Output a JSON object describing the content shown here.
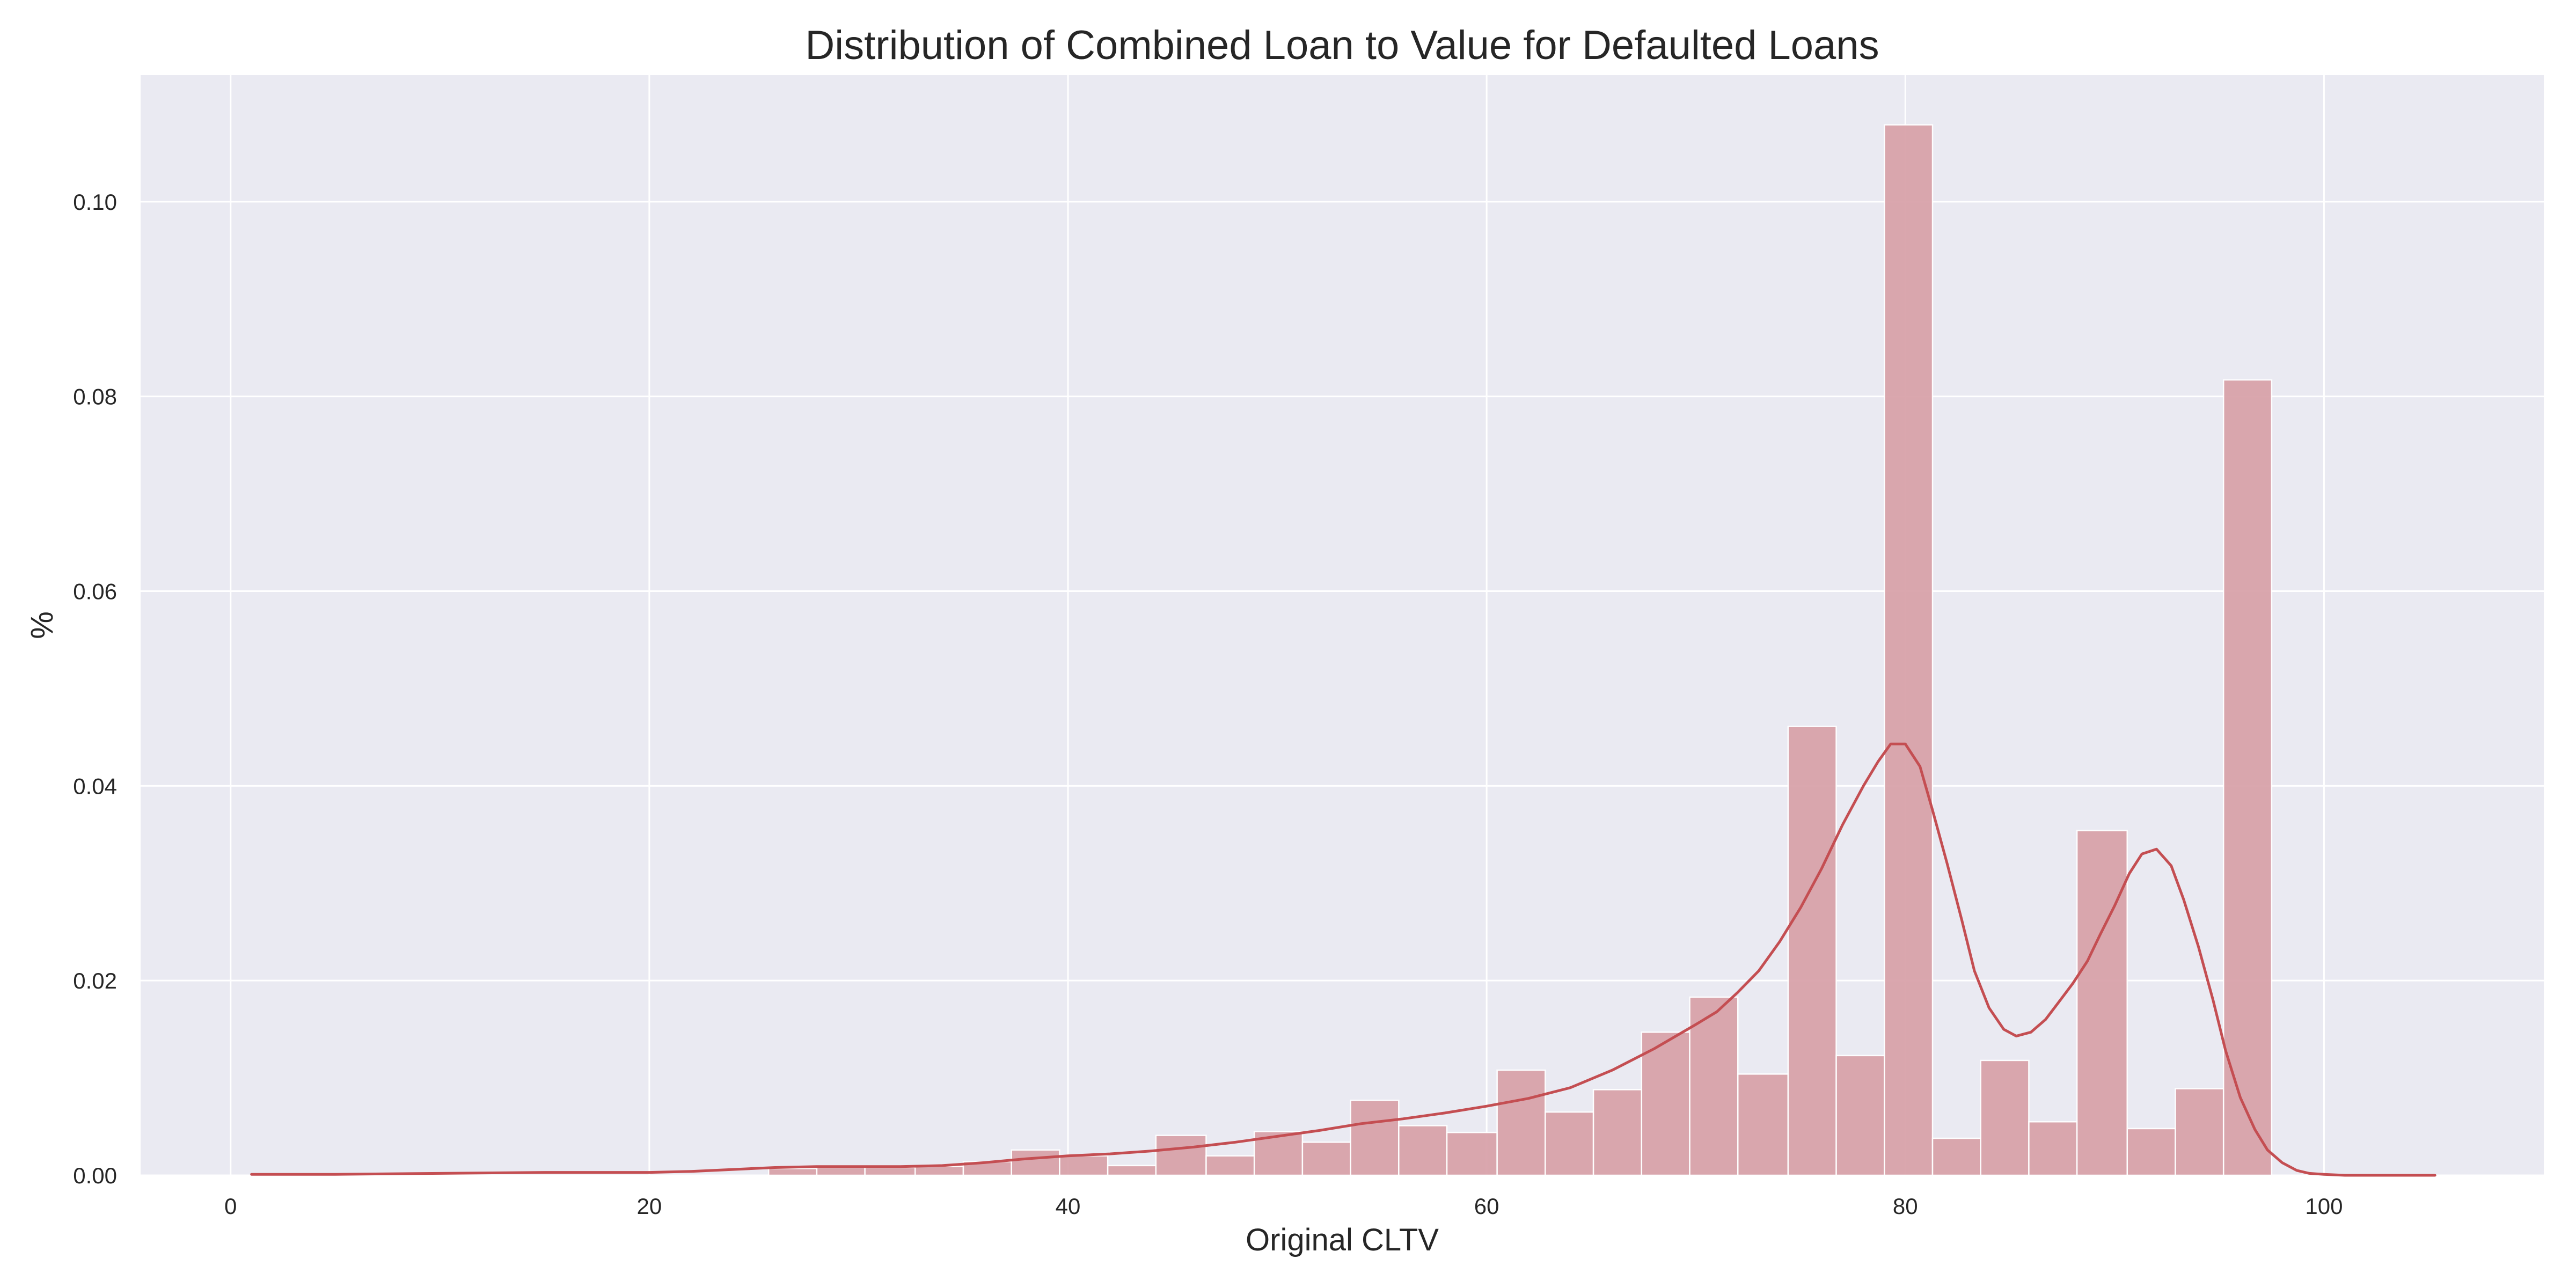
{
  "chart_data": {
    "type": "bar",
    "title": "Distribution of Combined Loan to Value for Defaulted Loans",
    "xlabel": "Original CLTV",
    "ylabel": "%",
    "xlim": [
      -4.3,
      110.5
    ],
    "ylim": [
      0,
      0.113
    ],
    "xticks": [
      0,
      20,
      40,
      60,
      80,
      100
    ],
    "yticks": [
      0.0,
      0.02,
      0.04,
      0.06,
      0.08,
      0.1
    ],
    "xtick_labels": [
      "0",
      "20",
      "40",
      "60",
      "80",
      "100"
    ],
    "ytick_labels": [
      "0.00",
      "0.02",
      "0.04",
      "0.06",
      "0.08",
      "0.10"
    ],
    "grid": true,
    "background_color": "#eaeaf2",
    "bar_color": "#d9a3aa",
    "line_color": "#c44e52",
    "histogram": {
      "bin_edges": [
        25.7,
        28.0,
        30.3,
        32.7,
        35.0,
        37.3,
        39.6,
        41.9,
        44.2,
        46.6,
        48.9,
        51.2,
        53.5,
        55.8,
        58.1,
        60.5,
        62.8,
        65.1,
        67.4,
        69.7,
        72.0,
        74.4,
        76.7,
        79.0,
        81.3,
        83.6,
        85.9,
        88.2,
        90.6,
        92.9,
        95.2,
        97.5
      ],
      "values": [
        0.0007,
        0.0008,
        0.0008,
        0.0009,
        0.0014,
        0.0026,
        0.002,
        0.001,
        0.0041,
        0.002,
        0.0045,
        0.0034,
        0.0077,
        0.0051,
        0.0044,
        0.0108,
        0.0065,
        0.0088,
        0.0147,
        0.0183,
        0.0104,
        0.0461,
        0.0123,
        0.1079,
        0.0038,
        0.0118,
        0.0055,
        0.0354,
        0.0048,
        0.0089,
        0.0817
      ]
    },
    "kde": {
      "x": [
        1,
        5,
        10,
        15,
        20,
        22,
        24,
        26,
        28,
        30,
        32,
        34,
        36,
        38,
        40,
        42,
        44,
        46,
        48,
        50,
        52,
        54,
        56,
        58,
        60,
        62,
        64,
        66,
        68,
        70,
        71,
        72,
        73,
        74,
        75,
        76,
        77,
        78,
        78.7,
        79.3,
        80,
        80.7,
        81.3,
        82,
        82.7,
        83.3,
        84,
        84.7,
        85.3,
        86,
        86.7,
        87.3,
        88,
        88.7,
        89.3,
        90,
        90.7,
        91.3,
        92,
        92.7,
        93.3,
        94,
        94.7,
        95.3,
        96,
        96.7,
        97.3,
        98,
        98.7,
        99.3,
        100,
        101,
        102,
        103,
        104,
        105.3
      ],
      "y": [
        0.0001,
        0.0001,
        0.0002,
        0.0003,
        0.0003,
        0.0004,
        0.0006,
        0.0008,
        0.0009,
        0.0009,
        0.0009,
        0.001,
        0.0013,
        0.0017,
        0.002,
        0.0022,
        0.0025,
        0.0029,
        0.0034,
        0.004,
        0.0046,
        0.0053,
        0.0058,
        0.0064,
        0.0071,
        0.0079,
        0.009,
        0.0108,
        0.013,
        0.0155,
        0.0168,
        0.0188,
        0.021,
        0.024,
        0.0275,
        0.0315,
        0.036,
        0.04,
        0.0425,
        0.0443,
        0.0443,
        0.042,
        0.0375,
        0.032,
        0.0262,
        0.021,
        0.0172,
        0.015,
        0.0143,
        0.0147,
        0.016,
        0.0177,
        0.0197,
        0.022,
        0.0247,
        0.0277,
        0.031,
        0.033,
        0.0335,
        0.0318,
        0.0283,
        0.0235,
        0.018,
        0.0128,
        0.008,
        0.0047,
        0.0026,
        0.0013,
        0.0005,
        0.0002,
        0.0001,
        0.0,
        0.0,
        0.0,
        0.0,
        0.0
      ]
    }
  }
}
